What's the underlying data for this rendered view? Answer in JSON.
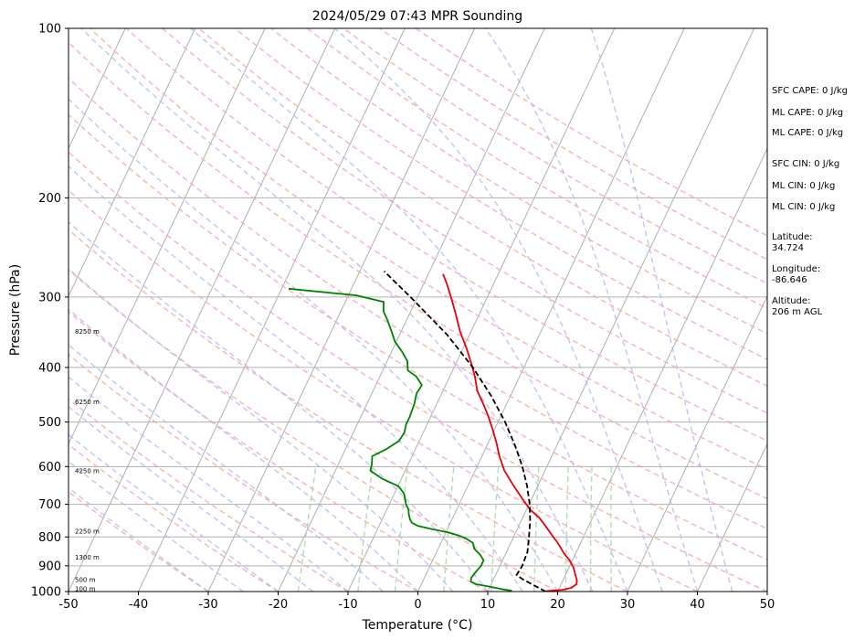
{
  "chart_data": {
    "type": "line",
    "title": "2024/05/29 07:43 MPR Sounding",
    "xlabel": "Temperature (°C)",
    "ylabel": "Pressure (hPa)",
    "xlim": [
      -50,
      50
    ],
    "ylim": [
      1000,
      100
    ],
    "yscale": "log",
    "xticks": [
      "-50",
      "-40",
      "-30",
      "-20",
      "-10",
      "0",
      "10",
      "20",
      "30",
      "40",
      "50"
    ],
    "yticks": [
      "100",
      "200",
      "300",
      "400",
      "500",
      "600",
      "700",
      "800",
      "900",
      "1000"
    ],
    "grid": true,
    "skew": "skew-T",
    "height_labels": [
      {
        "p": 988,
        "label": "100 m"
      },
      {
        "p": 953,
        "label": "500 m"
      },
      {
        "p": 870,
        "label": "1300 m"
      },
      {
        "p": 782,
        "label": "2250 m"
      },
      {
        "p": 610,
        "label": "4250 m"
      },
      {
        "p": 460,
        "label": "6250 m"
      },
      {
        "p": 345,
        "label": "8250 m"
      }
    ],
    "series": [
      {
        "kind": "temperature",
        "color": "#e8000b",
        "points": [
          [
            998,
            18.3
          ],
          [
            993,
            20.6
          ],
          [
            985,
            21.7
          ],
          [
            970,
            22.2
          ],
          [
            955,
            22.0
          ],
          [
            930,
            21.3
          ],
          [
            905,
            20.6
          ],
          [
            880,
            19.6
          ],
          [
            855,
            18.3
          ],
          [
            830,
            17.2
          ],
          [
            815,
            16.5
          ],
          [
            795,
            15.4
          ],
          [
            770,
            14.1
          ],
          [
            740,
            12.4
          ],
          [
            715,
            10.5
          ],
          [
            690,
            9.0
          ],
          [
            650,
            6.6
          ],
          [
            610,
            4.2
          ],
          [
            575,
            2.5
          ],
          [
            545,
            1.2
          ],
          [
            515,
            -0.3
          ],
          [
            490,
            -1.7
          ],
          [
            465,
            -3.3
          ],
          [
            440,
            -5.1
          ],
          [
            415,
            -6.4
          ],
          [
            395,
            -7.7
          ],
          [
            370,
            -9.5
          ],
          [
            345,
            -11.6
          ],
          [
            320,
            -13.5
          ],
          [
            300,
            -15.2
          ],
          [
            285,
            -16.6
          ],
          [
            273,
            -17.9
          ]
        ]
      },
      {
        "kind": "dewpoint",
        "color": "#008000",
        "points": [
          [
            997,
            13.4
          ],
          [
            990,
            11.8
          ],
          [
            980,
            9.9
          ],
          [
            970,
            7.8
          ],
          [
            960,
            6.9
          ],
          [
            945,
            6.7
          ],
          [
            920,
            7.0
          ],
          [
            900,
            7.3
          ],
          [
            880,
            7.3
          ],
          [
            860,
            6.4
          ],
          [
            840,
            5.2
          ],
          [
            820,
            4.6
          ],
          [
            805,
            3.3
          ],
          [
            795,
            2.0
          ],
          [
            785,
            0.3
          ],
          [
            775,
            -2.2
          ],
          [
            765,
            -4.4
          ],
          [
            755,
            -5.5
          ],
          [
            745,
            -6.0
          ],
          [
            730,
            -6.5
          ],
          [
            715,
            -6.9
          ],
          [
            700,
            -7.6
          ],
          [
            685,
            -8.1
          ],
          [
            670,
            -8.6
          ],
          [
            650,
            -9.9
          ],
          [
            630,
            -12.8
          ],
          [
            610,
            -15.0
          ],
          [
            595,
            -15.2
          ],
          [
            575,
            -15.7
          ],
          [
            558,
            -14.1
          ],
          [
            540,
            -12.9
          ],
          [
            522,
            -12.7
          ],
          [
            505,
            -13.0
          ],
          [
            490,
            -13.0
          ],
          [
            465,
            -13.2
          ],
          [
            445,
            -13.6
          ],
          [
            430,
            -13.4
          ],
          [
            415,
            -14.8
          ],
          [
            405,
            -16.4
          ],
          [
            390,
            -17.1
          ],
          [
            375,
            -18.5
          ],
          [
            360,
            -20.2
          ],
          [
            345,
            -21.4
          ],
          [
            330,
            -22.7
          ],
          [
            318,
            -23.9
          ],
          [
            306,
            -24.5
          ],
          [
            298,
            -28.8
          ],
          [
            290,
            -39.0
          ]
        ]
      },
      {
        "kind": "parcel",
        "color": "#000000",
        "points": [
          [
            1000,
            18.3
          ],
          [
            975,
            16.2
          ],
          [
            950,
            14.1
          ],
          [
            935,
            13.0
          ],
          [
            900,
            13.2
          ],
          [
            850,
            13.0
          ],
          [
            800,
            12.2
          ],
          [
            750,
            11.3
          ],
          [
            700,
            10.1
          ],
          [
            650,
            8.5
          ],
          [
            600,
            6.5
          ],
          [
            550,
            4.0
          ],
          [
            500,
            1.0
          ],
          [
            450,
            -2.7
          ],
          [
            400,
            -7.3
          ],
          [
            350,
            -13.2
          ],
          [
            300,
            -21.0
          ],
          [
            270,
            -26.5
          ]
        ]
      }
    ],
    "indices": {
      "sfc_cape": "SFC CAPE: 0 J/kg",
      "ml_cape_1": "ML CAPE: 0 J/kg",
      "ml_cape_2": "ML CAPE: 0 J/kg",
      "sfc_cin": "SFC CIN: 0 J/kg",
      "ml_cin_1": "ML CIN: 0 J/kg",
      "ml_cin_2": "ML CIN: 0 J/kg",
      "latitude_label": "Latitude:",
      "latitude_value": "34.724",
      "longitude_label": "Longitude:",
      "longitude_value": "-86.646",
      "altitude_label": "Altitude:",
      "altitude_value": "206 m AGL"
    }
  }
}
